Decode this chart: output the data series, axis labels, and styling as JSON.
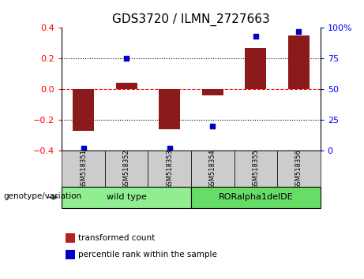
{
  "title": "GDS3720 / ILMN_2727663",
  "samples": [
    "GSM518351",
    "GSM518352",
    "GSM518353",
    "GSM518354",
    "GSM518355",
    "GSM518356"
  ],
  "red_bars": [
    -0.27,
    0.04,
    -0.26,
    -0.04,
    0.27,
    0.35
  ],
  "blue_pct": [
    2,
    75,
    2,
    20,
    93,
    97
  ],
  "ylim_left": [
    -0.4,
    0.4
  ],
  "ylim_right": [
    0,
    100
  ],
  "yticks_left": [
    -0.4,
    -0.2,
    0.0,
    0.2,
    0.4
  ],
  "yticks_right": [
    0,
    25,
    50,
    75,
    100
  ],
  "ytick_labels_right": [
    "0",
    "25",
    "50",
    "75",
    "100%"
  ],
  "hlines": [
    0.2,
    0.0,
    -0.2
  ],
  "hline_styles": [
    "dotted",
    "dashed",
    "dotted"
  ],
  "hline_colors": [
    "black",
    "red",
    "black"
  ],
  "bar_color": "#8B1A1A",
  "dot_color": "#0000CD",
  "bar_width": 0.5,
  "groups": [
    {
      "label": "wild type",
      "samples_idx": [
        0,
        1,
        2
      ],
      "color": "#90EE90"
    },
    {
      "label": "RORalpha1delDE",
      "samples_idx": [
        3,
        4,
        5
      ],
      "color": "#66DD66"
    }
  ],
  "group_label": "genotype/variation",
  "legend": [
    {
      "color": "#B22222",
      "label": "transformed count"
    },
    {
      "color": "#0000CD",
      "label": "percentile rank within the sample"
    }
  ],
  "background_color": "#ffffff",
  "sample_box_color": "#CCCCCC",
  "title_fontsize": 11,
  "tick_fontsize": 8,
  "sample_fontsize": 6,
  "group_fontsize": 8,
  "legend_fontsize": 7.5
}
